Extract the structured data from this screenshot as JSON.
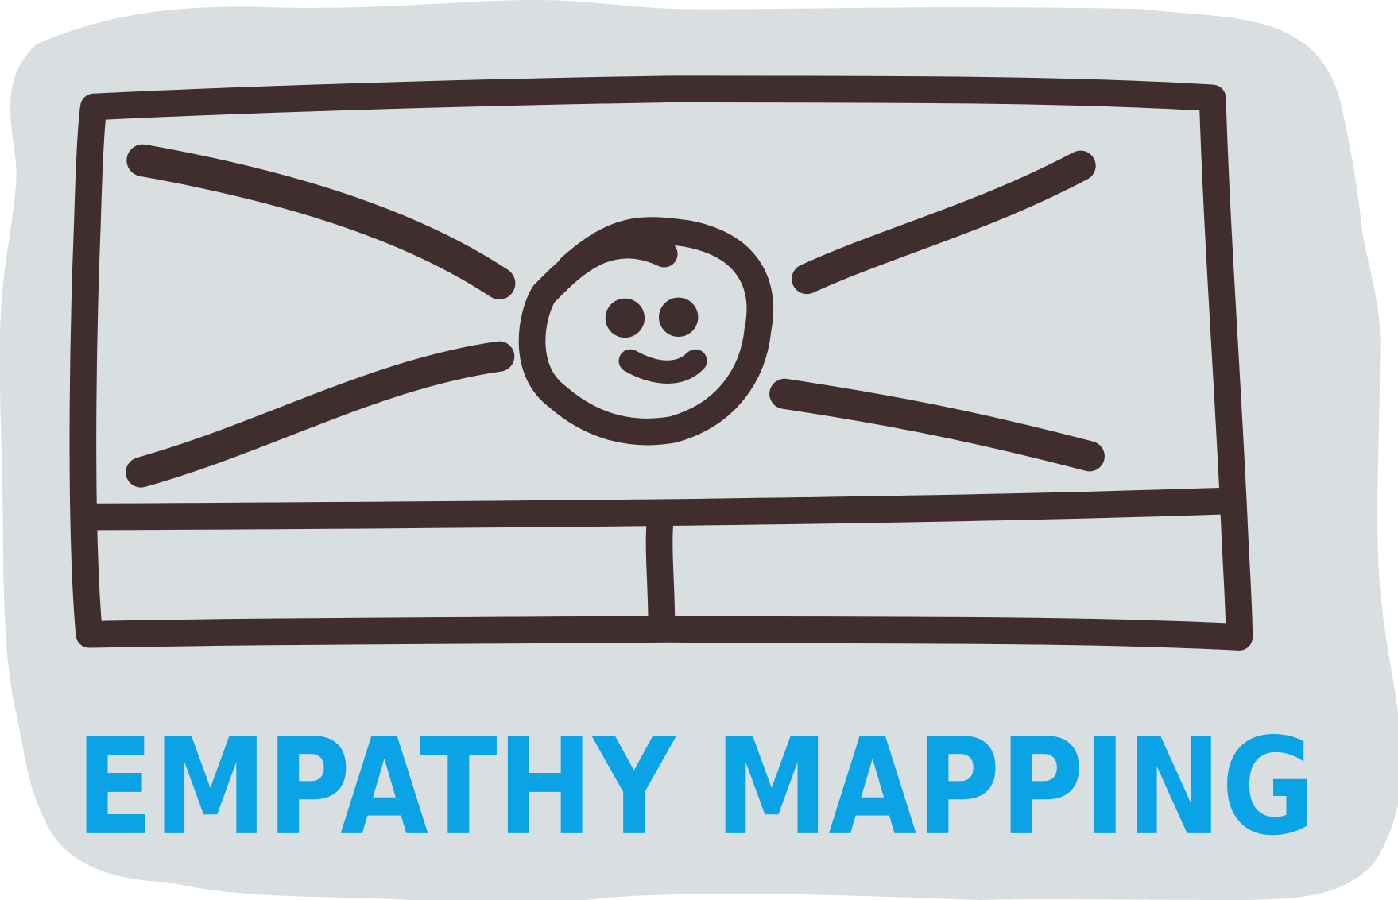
{
  "title": "EMPATHY MAPPING"
}
